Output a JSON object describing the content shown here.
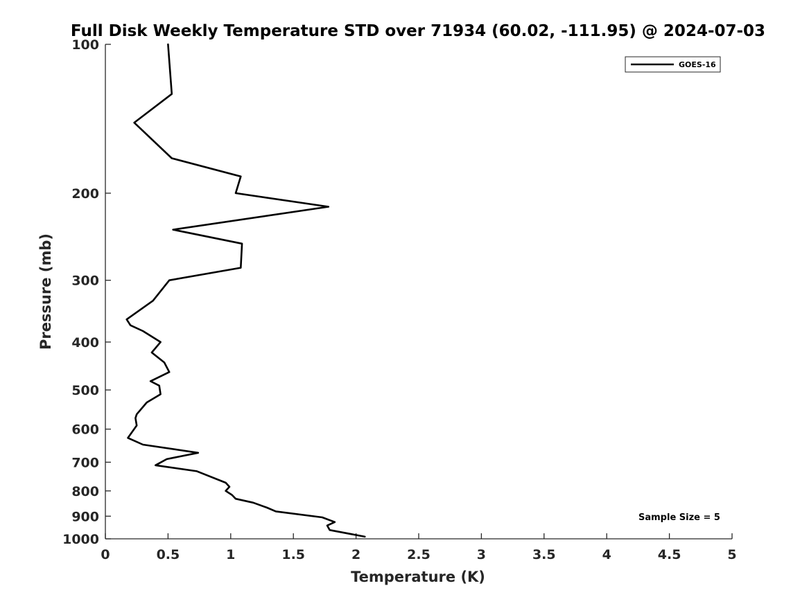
{
  "chart_data": {
    "type": "line",
    "title": "Full Disk Weekly Temperature STD over 71934 (60.02, -111.95) @ 2024-07-03",
    "xlabel": "Temperature (K)",
    "ylabel": "Pressure (mb)",
    "xlim": [
      0,
      5
    ],
    "ylim": [
      100,
      1000
    ],
    "yscale": "log",
    "y_reversed": true,
    "grid": false,
    "legend_position": "top-right",
    "x_ticks": [
      {
        "value": 0,
        "label": "0"
      },
      {
        "value": 0.5,
        "label": "0.5"
      },
      {
        "value": 1,
        "label": "1"
      },
      {
        "value": 1.5,
        "label": "1.5"
      },
      {
        "value": 2,
        "label": "2"
      },
      {
        "value": 2.5,
        "label": "2.5"
      },
      {
        "value": 3,
        "label": "3"
      },
      {
        "value": 3.5,
        "label": "3.5"
      },
      {
        "value": 4,
        "label": "4"
      },
      {
        "value": 4.5,
        "label": "4.5"
      },
      {
        "value": 5,
        "label": "5"
      }
    ],
    "y_ticks": [
      {
        "value": 100,
        "label": "100"
      },
      {
        "value": 200,
        "label": "200"
      },
      {
        "value": 300,
        "label": "300"
      },
      {
        "value": 400,
        "label": "400"
      },
      {
        "value": 500,
        "label": "500"
      },
      {
        "value": 600,
        "label": "600"
      },
      {
        "value": 700,
        "label": "700"
      },
      {
        "value": 800,
        "label": "800"
      },
      {
        "value": 900,
        "label": "900"
      },
      {
        "value": 1000,
        "label": "1000"
      }
    ],
    "series": [
      {
        "name": "GOES-16",
        "color": "#000000",
        "x": [
          0.5,
          0.53,
          0.23,
          0.53,
          1.08,
          1.04,
          1.78,
          0.54,
          1.09,
          1.08,
          0.51,
          0.38,
          0.17,
          0.2,
          0.3,
          0.44,
          0.37,
          0.47,
          0.51,
          0.36,
          0.43,
          0.44,
          0.33,
          0.25,
          0.24,
          0.25,
          0.18,
          0.3,
          0.74,
          0.49,
          0.4,
          0.73,
          0.96,
          0.99,
          0.96,
          1.01,
          1.04,
          1.18,
          1.29,
          1.36,
          1.73,
          1.83,
          1.77,
          1.79,
          2.07
        ],
        "y": [
          100,
          126,
          144,
          170,
          185,
          200,
          213,
          237,
          253,
          283,
          300,
          330,
          360,
          370,
          380,
          400,
          420,
          440,
          460,
          480,
          490,
          510,
          530,
          560,
          570,
          590,
          625,
          645,
          670,
          690,
          710,
          730,
          770,
          785,
          800,
          815,
          830,
          845,
          865,
          880,
          905,
          925,
          940,
          960,
          990
        ]
      }
    ],
    "annotations": [
      {
        "text": "Sample Size = 5",
        "position": "lower-right"
      }
    ]
  }
}
